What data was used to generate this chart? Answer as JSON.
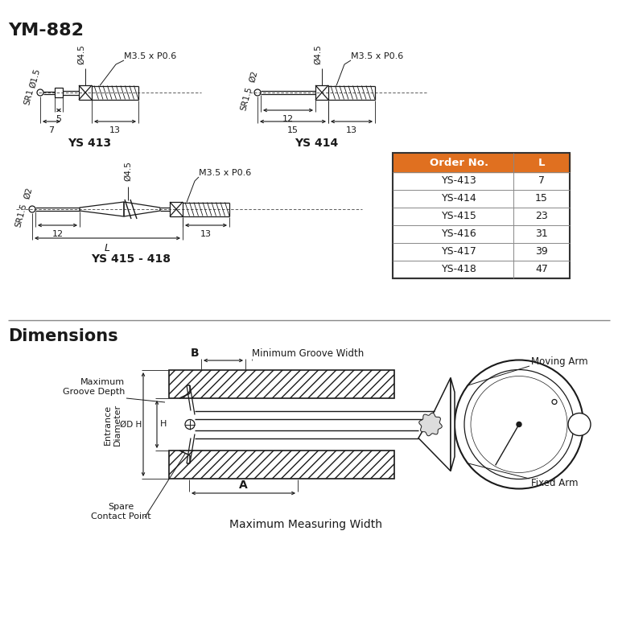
{
  "title": "YM-882",
  "bg_color": "#ffffff",
  "title_fontsize": 16,
  "section2_title": "Dimensions",
  "table_header_bg": "#e07020",
  "table_header_color": "#ffffff",
  "table_col1": "Order No.",
  "table_col2": "L",
  "table_rows": [
    [
      "YS-413",
      "7"
    ],
    [
      "YS-414",
      "15"
    ],
    [
      "YS-415",
      "23"
    ],
    [
      "YS-416",
      "31"
    ],
    [
      "YS-417",
      "39"
    ],
    [
      "YS-418",
      "47"
    ]
  ],
  "line_color": "#1a1a1a",
  "dim_labels_ys413": {
    "dia1": "Ø1.5",
    "sr": "SR1",
    "dia2": "Ø4.5",
    "thread": "M3.5 x P0.6",
    "d5": "5",
    "d7": "7",
    "d13": "13",
    "label": "YS 413"
  },
  "dim_labels_ys414": {
    "dia1": "Ø2",
    "sr": "SR1.5",
    "dia2": "Ø4.5",
    "thread": "M3.5 x P0.6",
    "d12": "12",
    "d15": "15",
    "d13": "13",
    "label": "YS 414"
  },
  "dim_labels_ys415": {
    "dia1": "Ø2",
    "sr": "SR1.5",
    "dia2": "Ø4.5",
    "thread": "M3.5 x P0.6",
    "d12": "12",
    "d13": "13",
    "dL": "L",
    "label": "YS 415 - 418"
  },
  "dim_labels_dimensions": {
    "B": "B",
    "min_groove": "Minimum Groove Width",
    "max_groove_depth": "Maximum\nGroove Depth",
    "entrance_dia": "Entrance\nDiameter",
    "od_h": "ØD H",
    "A": "A",
    "spare": "Spare\nContact Point",
    "max_width": "Maximum Measuring Width",
    "moving_arm": "Moving Arm",
    "fixed_arm": "Fixed Arm"
  }
}
